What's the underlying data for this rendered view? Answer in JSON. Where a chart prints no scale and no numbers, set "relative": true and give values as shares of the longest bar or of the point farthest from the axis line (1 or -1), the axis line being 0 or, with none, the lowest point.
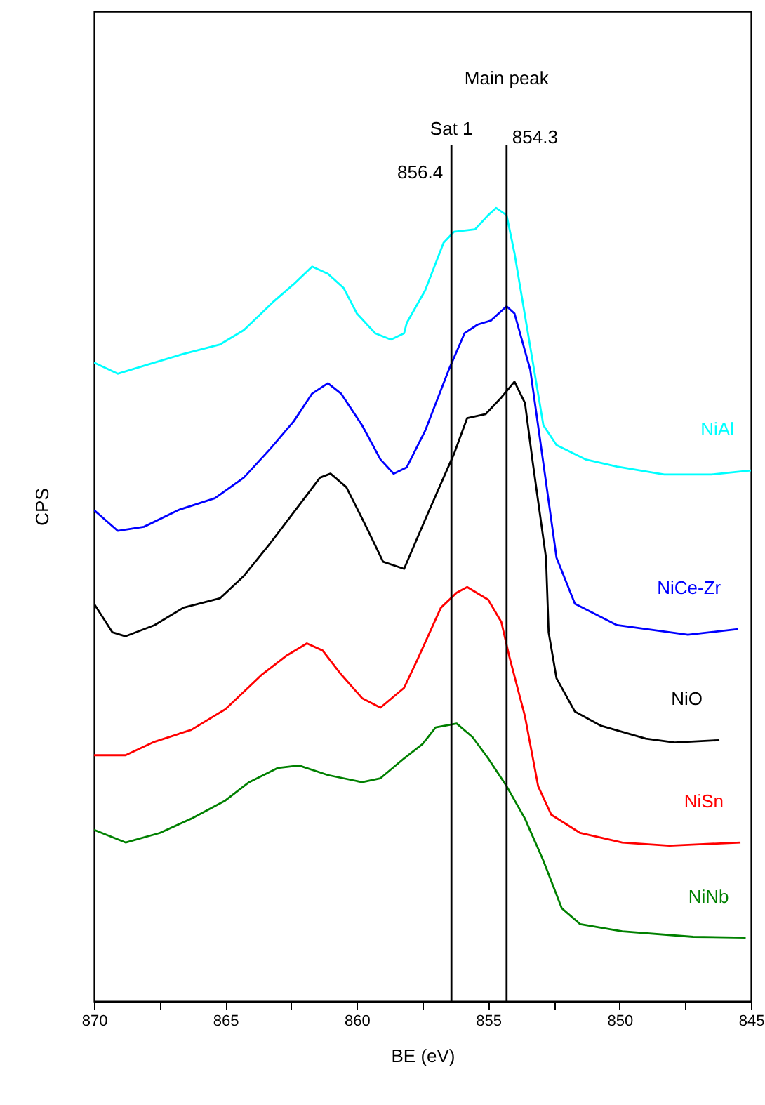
{
  "chart_data": {
    "type": "line",
    "relative": true,
    "xlabel": "BE (eV)",
    "ylabel": "CPS",
    "xlim": [
      870,
      845
    ],
    "xticks": [
      870,
      {
        "value": 867.5,
        "label": null
      },
      865,
      {
        "value": 862.5,
        "label": null
      },
      860,
      {
        "value": 857.5,
        "label": null
      },
      855,
      {
        "value": 852.5,
        "label": null
      },
      850,
      {
        "value": 847.5,
        "label": null
      },
      845
    ],
    "grid": false,
    "legend": false,
    "marker": "none",
    "line_style": "solid",
    "ref_lines": [
      {
        "axis": "x",
        "value": 856.4,
        "label": "856.4",
        "color": "#000000"
      },
      {
        "axis": "x",
        "value": 854.3,
        "label": "854.3",
        "color": "#000000"
      }
    ],
    "annotations": [
      "Sat 1",
      "Main peak"
    ],
    "series": [
      {
        "name": "NiAl",
        "color": "#00ffff",
        "x": [
          870,
          869.1,
          868.0,
          866.6,
          865.2,
          864.3,
          863.2,
          862.4,
          861.7,
          861.1,
          860.5,
          860.0,
          859.3,
          858.7,
          858.2,
          858.1,
          857.4,
          856.7,
          856.3,
          855.5,
          855.0,
          854.7,
          854.3,
          854.0,
          853.4,
          852.9,
          852.4,
          851.3,
          850.1,
          848.3,
          846.5,
          845.0
        ],
        "values": [
          0.805,
          0.791,
          0.802,
          0.816,
          0.828,
          0.846,
          0.881,
          0.904,
          0.926,
          0.917,
          0.899,
          0.867,
          0.842,
          0.834,
          0.842,
          0.855,
          0.896,
          0.956,
          0.97,
          0.973,
          0.991,
          1.0,
          0.991,
          0.943,
          0.825,
          0.726,
          0.701,
          0.683,
          0.674,
          0.664,
          0.664,
          0.669
        ]
      },
      {
        "name": "NiCe-Zr",
        "color": "#0000ff",
        "x": [
          870,
          869.1,
          868.1,
          866.8,
          865.4,
          864.3,
          863.3,
          862.4,
          861.7,
          861.1,
          860.6,
          859.8,
          859.1,
          858.6,
          858.1,
          857.4,
          856.5,
          855.9,
          855.4,
          854.9,
          854.3,
          854.0,
          853.4,
          852.9,
          852.4,
          851.7,
          850.1,
          847.4,
          845.5
        ],
        "values": [
          0.619,
          0.593,
          0.598,
          0.619,
          0.634,
          0.66,
          0.696,
          0.731,
          0.766,
          0.779,
          0.766,
          0.726,
          0.683,
          0.665,
          0.673,
          0.719,
          0.796,
          0.842,
          0.853,
          0.858,
          0.876,
          0.867,
          0.796,
          0.678,
          0.559,
          0.501,
          0.474,
          0.462,
          0.469
        ]
      },
      {
        "name": "NiO",
        "color": "#000000",
        "x": [
          870,
          869.3,
          868.8,
          867.7,
          866.6,
          865.2,
          864.3,
          863.3,
          862.2,
          861.4,
          861.0,
          860.4,
          859.7,
          859.0,
          858.2,
          857.4,
          856.3,
          855.8,
          855.1,
          854.5,
          854.0,
          853.6,
          853.3,
          852.8,
          852.7,
          852.4,
          851.7,
          850.7,
          849.0,
          847.9,
          846.2
        ],
        "values": [
          0.501,
          0.465,
          0.46,
          0.474,
          0.496,
          0.508,
          0.536,
          0.577,
          0.625,
          0.66,
          0.665,
          0.648,
          0.602,
          0.554,
          0.545,
          0.607,
          0.69,
          0.735,
          0.74,
          0.761,
          0.781,
          0.754,
          0.678,
          0.559,
          0.465,
          0.407,
          0.365,
          0.347,
          0.331,
          0.326,
          0.329
        ]
      },
      {
        "name": "NiSn",
        "color": "#ff0000",
        "x": [
          870,
          868.8,
          867.7,
          866.3,
          865.0,
          863.6,
          862.7,
          861.9,
          861.3,
          860.6,
          859.8,
          859.1,
          858.2,
          857.7,
          856.8,
          856.2,
          855.8,
          855.0,
          854.5,
          854.2,
          853.6,
          853.1,
          852.6,
          851.5,
          849.9,
          848.1,
          845.4
        ],
        "values": [
          0.31,
          0.31,
          0.327,
          0.342,
          0.368,
          0.412,
          0.435,
          0.451,
          0.442,
          0.412,
          0.382,
          0.37,
          0.395,
          0.43,
          0.496,
          0.515,
          0.522,
          0.506,
          0.478,
          0.435,
          0.359,
          0.271,
          0.235,
          0.212,
          0.2,
          0.196,
          0.2
        ]
      },
      {
        "name": "NiNb",
        "color": "#008000",
        "x": [
          870,
          868.8,
          867.5,
          866.3,
          865.0,
          864.1,
          863.0,
          862.2,
          861.1,
          859.8,
          859.1,
          858.2,
          857.5,
          857.0,
          856.2,
          855.6,
          855.0,
          854.3,
          853.6,
          852.9,
          852.2,
          851.5,
          849.9,
          847.2,
          845.2
        ],
        "values": [
          0.216,
          0.2,
          0.212,
          0.23,
          0.253,
          0.276,
          0.294,
          0.297,
          0.285,
          0.276,
          0.281,
          0.306,
          0.324,
          0.345,
          0.35,
          0.333,
          0.306,
          0.271,
          0.23,
          0.177,
          0.117,
          0.097,
          0.088,
          0.081,
          0.08
        ]
      }
    ]
  }
}
